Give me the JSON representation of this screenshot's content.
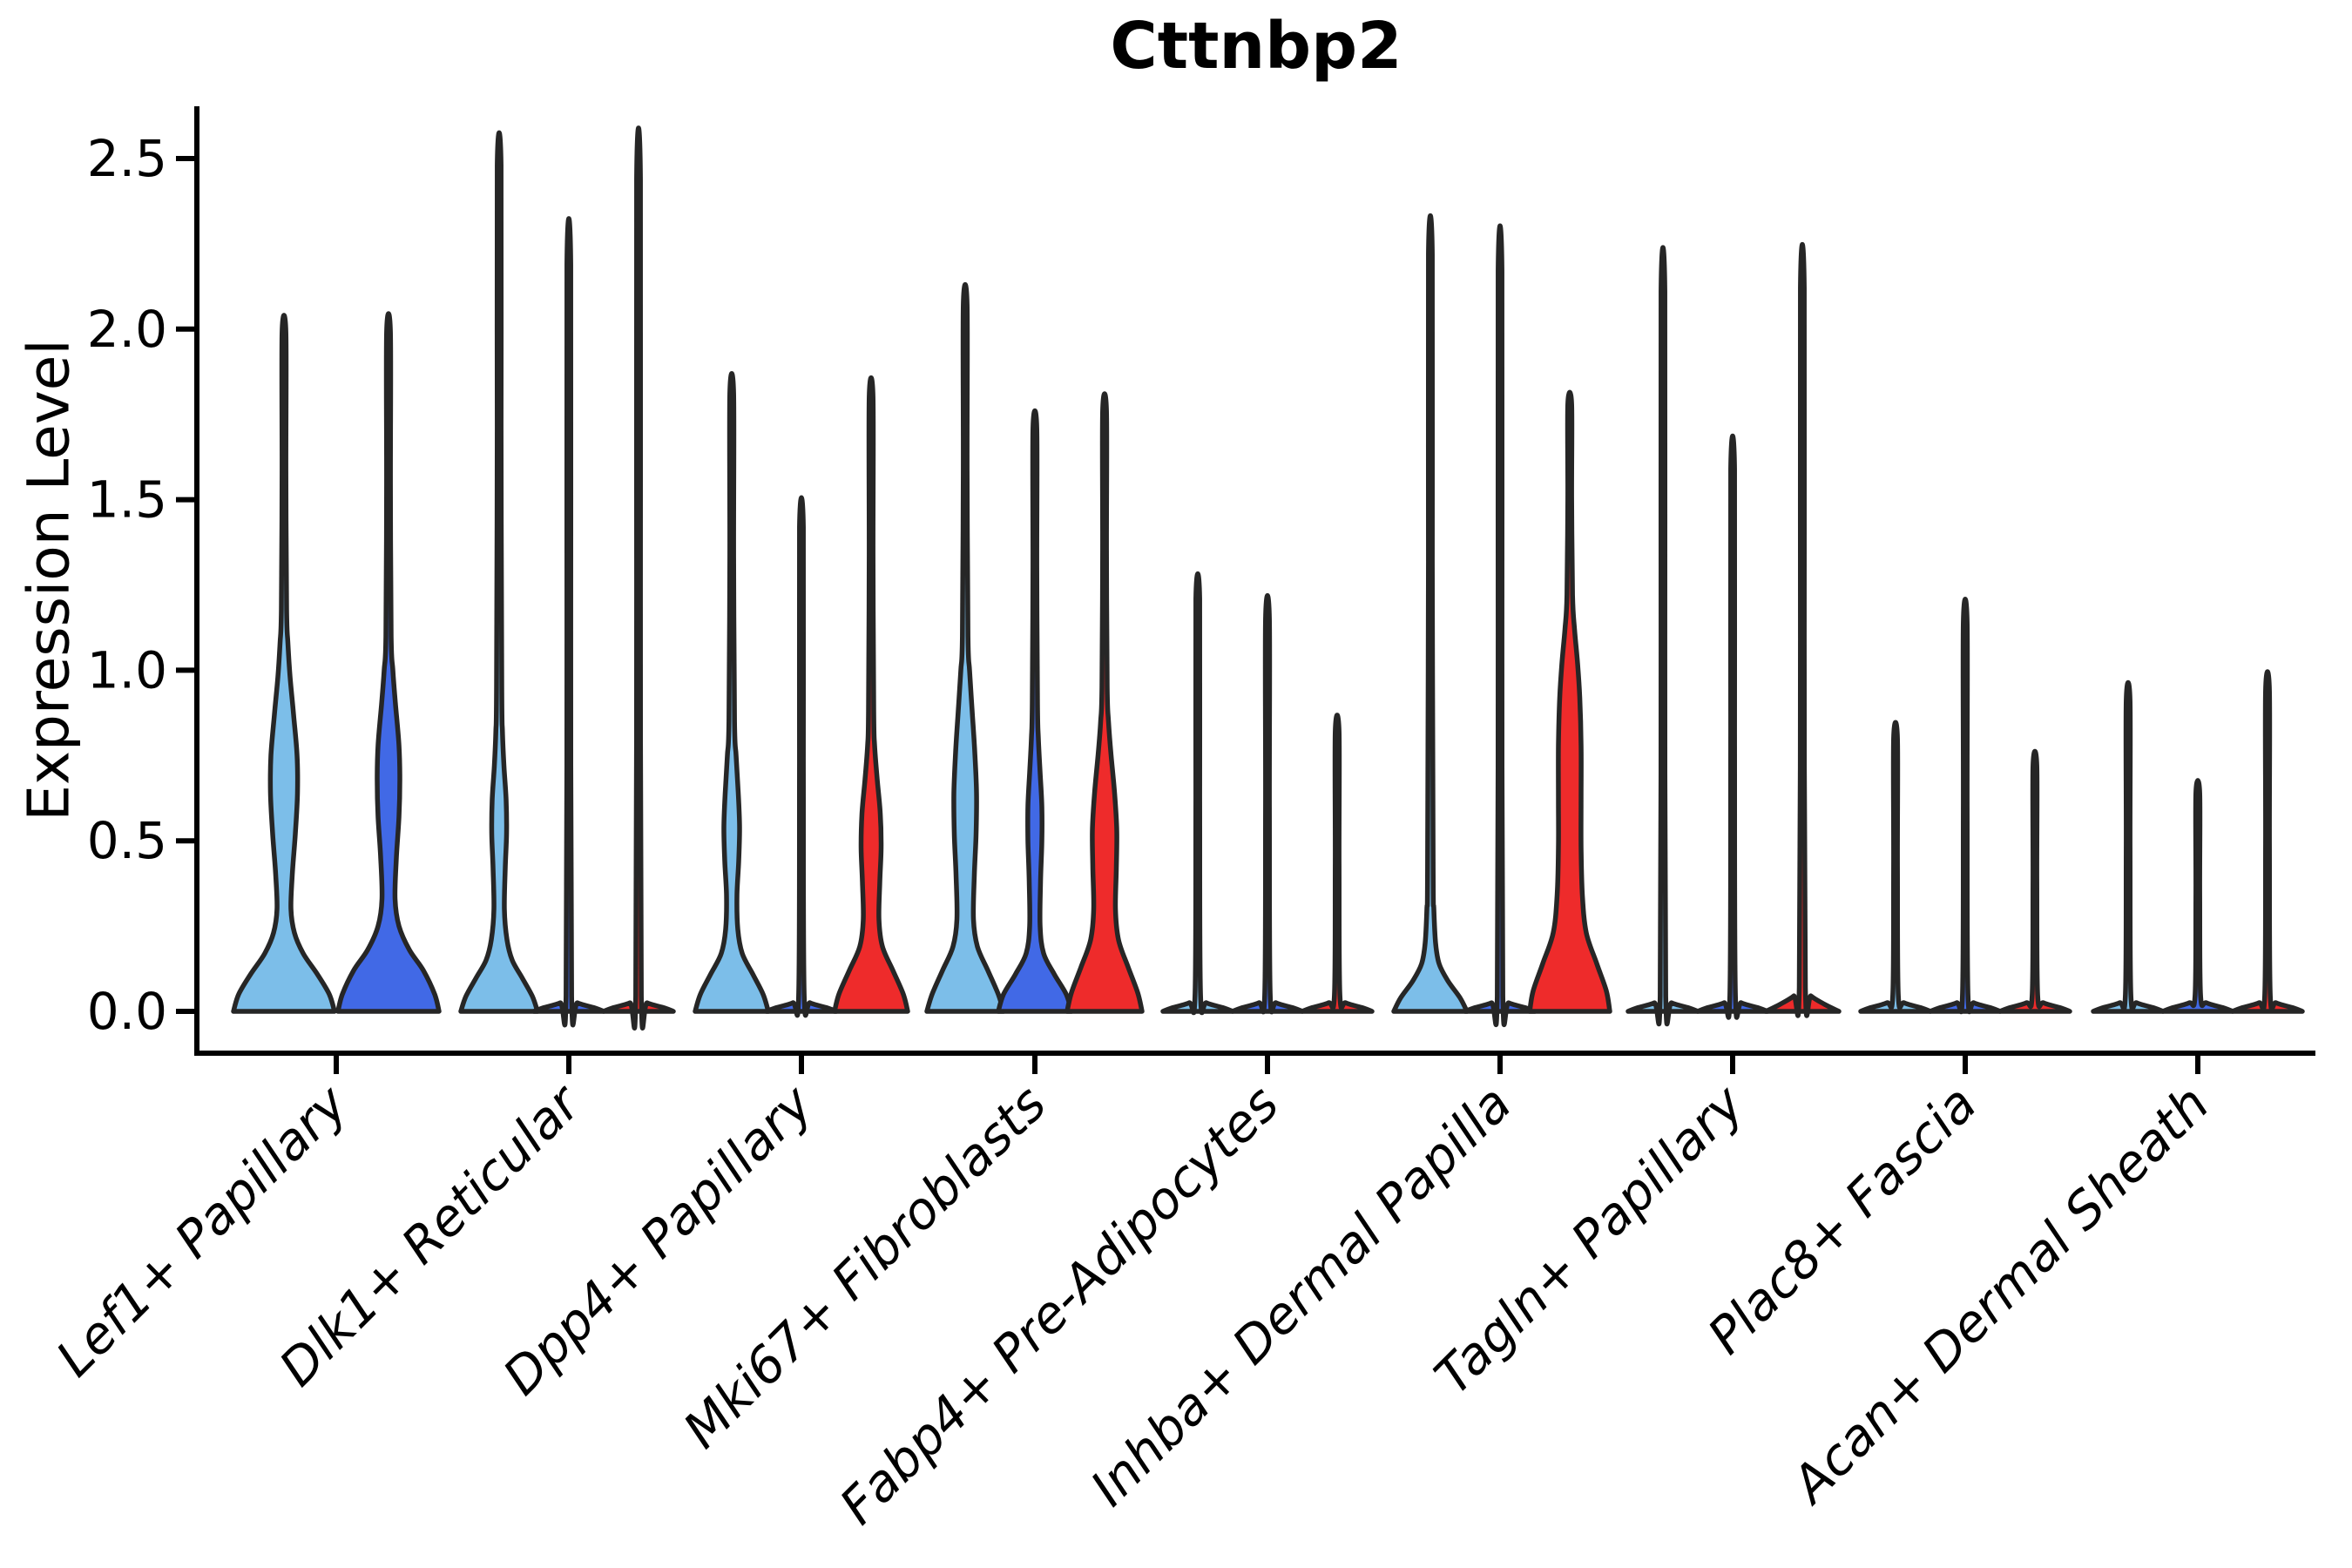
{
  "chart_data": {
    "type": "violin",
    "title": "Cttnbp2",
    "ylabel": "Expression Level",
    "ytick_labels": [
      "0.0",
      "0.5",
      "1.0",
      "1.5",
      "2.0",
      "2.5"
    ],
    "ytick_values": [
      0.0,
      0.5,
      1.0,
      1.5,
      2.0,
      2.5
    ],
    "ylim": [
      -0.12,
      2.66
    ],
    "x_tick_rotation_deg": 45,
    "grid": false,
    "legend": "none",
    "categories": [
      "Lef1+ Papillary",
      "Dlk1+ Reticular",
      "Dpp4+ Papillary",
      "Mki67+ Fibroblasts",
      "Fabp4+ Pre-Adipocytes",
      "Inhba+ Dermal Papilla",
      "Tagln+ Papillary",
      "Plac8+ Fascia",
      "Acan+ Dermal Sheath"
    ],
    "palette": {
      "light_blue": "#7CBEE9",
      "dark_blue": "#4169E6",
      "red": "#EE2B2B",
      "outline": "#262626",
      "axis": "#000000"
    },
    "series_max_expression": [
      {
        "name": "light_blue",
        "values": [
          1.99,
          2.48,
          1.81,
          2.07,
          1.21,
          2.22,
          2.11,
          0.8,
          0.91
        ]
      },
      {
        "name": "dark_blue",
        "values": [
          1.99,
          2.19,
          1.42,
          1.71,
          1.15,
          2.17,
          1.59,
          1.14,
          0.64
        ]
      },
      {
        "name": "red",
        "values": [
          null,
          2.44,
          1.8,
          1.76,
          0.82,
          1.78,
          2.12,
          0.72,
          0.94
        ]
      }
    ],
    "groups": [
      {
        "category": "Lef1+ Papillary",
        "violins": [
          {
            "color": "light_blue",
            "max": 1.99,
            "profile": [
              [
                0,
                58
              ],
              [
                0.05,
                52
              ],
              [
                0.11,
                38
              ],
              [
                0.17,
                22
              ],
              [
                0.23,
                12
              ],
              [
                0.3,
                8
              ],
              [
                0.4,
                9.5
              ],
              [
                0.52,
                13
              ],
              [
                0.64,
                15.5
              ],
              [
                0.75,
                15
              ],
              [
                0.87,
                11
              ],
              [
                0.98,
                7
              ],
              [
                1.08,
                4.5
              ],
              [
                1.18,
                3
              ]
            ]
          },
          {
            "color": "dark_blue",
            "max": 1.99,
            "profile": [
              [
                0,
                58
              ],
              [
                0.05,
                53
              ],
              [
                0.12,
                40
              ],
              [
                0.18,
                24
              ],
              [
                0.25,
                12
              ],
              [
                0.33,
                7.5
              ],
              [
                0.45,
                9
              ],
              [
                0.57,
                12
              ],
              [
                0.68,
                13
              ],
              [
                0.78,
                12
              ],
              [
                0.9,
                8
              ],
              [
                1.0,
                5
              ],
              [
                1.1,
                3
              ]
            ]
          }
        ]
      },
      {
        "category": "Dlk1+ Reticular",
        "violins": [
          {
            "color": "light_blue",
            "max": 2.48,
            "profile": [
              [
                0,
                44
              ],
              [
                0.045,
                38
              ],
              [
                0.1,
                26
              ],
              [
                0.15,
                15
              ],
              [
                0.21,
                9
              ],
              [
                0.3,
                6
              ],
              [
                0.42,
                7
              ],
              [
                0.52,
                8.5
              ],
              [
                0.62,
                8
              ],
              [
                0.72,
                5.5
              ],
              [
                0.82,
                3.8
              ],
              [
                0.95,
                3
              ]
            ]
          },
          {
            "color": "dark_blue",
            "max": 2.19,
            "profile": [
              [
                0,
                40
              ],
              [
                0.01,
                30
              ],
              [
                0.025,
                10
              ],
              [
                0.045,
                3.2
              ]
            ]
          },
          {
            "color": "red",
            "max": 2.44,
            "profile": [
              [
                0,
                40
              ],
              [
                0.01,
                30
              ],
              [
                0.025,
                10
              ],
              [
                0.045,
                3.2
              ]
            ]
          }
        ]
      },
      {
        "category": "Dpp4+ Papillary",
        "violins": [
          {
            "color": "light_blue",
            "max": 1.81,
            "profile": [
              [
                0,
                42
              ],
              [
                0.05,
                36
              ],
              [
                0.11,
                24
              ],
              [
                0.17,
                12
              ],
              [
                0.24,
                7
              ],
              [
                0.34,
                6
              ],
              [
                0.44,
                8
              ],
              [
                0.54,
                9
              ],
              [
                0.64,
                7.5
              ],
              [
                0.75,
                5
              ],
              [
                0.85,
                3.2
              ]
            ]
          },
          {
            "color": "dark_blue",
            "max": 1.42,
            "profile": [
              [
                0,
                40
              ],
              [
                0.01,
                30
              ],
              [
                0.025,
                10
              ],
              [
                0.045,
                3.2
              ]
            ]
          },
          {
            "color": "red",
            "max": 1.8,
            "profile": [
              [
                0,
                42
              ],
              [
                0.05,
                37
              ],
              [
                0.12,
                25
              ],
              [
                0.19,
                13
              ],
              [
                0.27,
                9
              ],
              [
                0.38,
                10
              ],
              [
                0.48,
                11.5
              ],
              [
                0.58,
                10.5
              ],
              [
                0.68,
                7
              ],
              [
                0.78,
                4
              ],
              [
                0.88,
                3
              ]
            ]
          }
        ]
      },
      {
        "category": "Mki67+ Fibroblasts",
        "violins": [
          {
            "color": "light_blue",
            "max": 2.07,
            "profile": [
              [
                0,
                44
              ],
              [
                0.05,
                38
              ],
              [
                0.12,
                26
              ],
              [
                0.19,
                14
              ],
              [
                0.27,
                9.5
              ],
              [
                0.4,
                10.5
              ],
              [
                0.52,
                12.5
              ],
              [
                0.64,
                13
              ],
              [
                0.76,
                11
              ],
              [
                0.88,
                8
              ],
              [
                1.0,
                5
              ],
              [
                1.1,
                3.2
              ]
            ]
          },
          {
            "color": "dark_blue",
            "max": 1.71,
            "profile": [
              [
                0,
                42
              ],
              [
                0.05,
                36
              ],
              [
                0.11,
                22
              ],
              [
                0.17,
                10
              ],
              [
                0.25,
                6
              ],
              [
                0.38,
                6.5
              ],
              [
                0.5,
                8
              ],
              [
                0.6,
                8
              ],
              [
                0.7,
                6
              ],
              [
                0.8,
                4
              ],
              [
                0.9,
                3
              ]
            ]
          },
          {
            "color": "red",
            "max": 1.76,
            "profile": [
              [
                0,
                43
              ],
              [
                0.055,
                38
              ],
              [
                0.13,
                27
              ],
              [
                0.21,
                16
              ],
              [
                0.3,
                12.5
              ],
              [
                0.42,
                13.5
              ],
              [
                0.53,
                14
              ],
              [
                0.64,
                11.5
              ],
              [
                0.75,
                7.5
              ],
              [
                0.85,
                4.5
              ],
              [
                0.95,
                3
              ]
            ]
          }
        ]
      },
      {
        "category": "Fabp4+ Pre-Adipocytes",
        "violins": [
          {
            "color": "light_blue",
            "max": 1.21,
            "profile": [
              [
                0,
                40
              ],
              [
                0.01,
                30
              ],
              [
                0.025,
                10
              ],
              [
                0.045,
                3.2
              ]
            ]
          },
          {
            "color": "dark_blue",
            "max": 1.15,
            "profile": [
              [
                0,
                40
              ],
              [
                0.01,
                30
              ],
              [
                0.025,
                10
              ],
              [
                0.045,
                3.2
              ]
            ]
          },
          {
            "color": "red",
            "max": 0.82,
            "profile": [
              [
                0,
                40
              ],
              [
                0.01,
                30
              ],
              [
                0.025,
                10
              ],
              [
                0.045,
                3.2
              ]
            ]
          }
        ]
      },
      {
        "category": "Inhba+ Dermal Papilla",
        "violins": [
          {
            "color": "light_blue",
            "max": 2.22,
            "profile": [
              [
                0,
                42
              ],
              [
                0.04,
                34
              ],
              [
                0.09,
                20
              ],
              [
                0.14,
                10
              ],
              [
                0.2,
                6
              ],
              [
                0.3,
                4
              ],
              [
                0.42,
                3.2
              ]
            ]
          },
          {
            "color": "dark_blue",
            "max": 2.17,
            "profile": [
              [
                0,
                40
              ],
              [
                0.01,
                30
              ],
              [
                0.025,
                10
              ],
              [
                0.045,
                3.2
              ]
            ]
          },
          {
            "color": "red",
            "max": 1.78,
            "profile": [
              [
                0,
                46
              ],
              [
                0.06,
                42
              ],
              [
                0.14,
                31
              ],
              [
                0.23,
                19
              ],
              [
                0.34,
                14.5
              ],
              [
                0.48,
                13
              ],
              [
                0.62,
                13
              ],
              [
                0.78,
                13
              ],
              [
                0.92,
                11.5
              ],
              [
                1.02,
                9
              ],
              [
                1.12,
                5.5
              ],
              [
                1.22,
                3.2
              ]
            ]
          }
        ]
      },
      {
        "category": "Tagln+ Papillary",
        "violins": [
          {
            "color": "light_blue",
            "max": 2.11,
            "profile": [
              [
                0,
                40
              ],
              [
                0.01,
                30
              ],
              [
                0.025,
                10
              ],
              [
                0.045,
                3.2
              ]
            ]
          },
          {
            "color": "dark_blue",
            "max": 1.59,
            "profile": [
              [
                0,
                40
              ],
              [
                0.01,
                30
              ],
              [
                0.025,
                10
              ],
              [
                0.045,
                3.2
              ]
            ]
          },
          {
            "color": "red",
            "max": 2.12,
            "profile": [
              [
                0,
                42
              ],
              [
                0.02,
                26
              ],
              [
                0.045,
                10
              ],
              [
                0.07,
                3.5
              ]
            ]
          }
        ]
      },
      {
        "category": "Plac8+ Fascia",
        "violins": [
          {
            "color": "light_blue",
            "max": 0.8,
            "profile": [
              [
                0,
                40
              ],
              [
                0.01,
                30
              ],
              [
                0.025,
                10
              ],
              [
                0.045,
                3.2
              ]
            ]
          },
          {
            "color": "dark_blue",
            "max": 1.14,
            "profile": [
              [
                0,
                40
              ],
              [
                0.01,
                30
              ],
              [
                0.025,
                10
              ],
              [
                0.045,
                3.2
              ]
            ]
          },
          {
            "color": "red",
            "max": 0.72,
            "profile": [
              [
                0,
                40
              ],
              [
                0.01,
                30
              ],
              [
                0.025,
                10
              ],
              [
                0.045,
                3.2
              ]
            ]
          }
        ]
      },
      {
        "category": "Acan+ Dermal Sheath",
        "violins": [
          {
            "color": "light_blue",
            "max": 0.91,
            "profile": [
              [
                0,
                40
              ],
              [
                0.01,
                30
              ],
              [
                0.025,
                10
              ],
              [
                0.045,
                3.2
              ]
            ]
          },
          {
            "color": "dark_blue",
            "max": 0.64,
            "profile": [
              [
                0,
                40
              ],
              [
                0.01,
                30
              ],
              [
                0.025,
                10
              ],
              [
                0.045,
                3.2
              ]
            ]
          },
          {
            "color": "red",
            "max": 0.94,
            "profile": [
              [
                0,
                40
              ],
              [
                0.01,
                30
              ],
              [
                0.025,
                10
              ],
              [
                0.045,
                3.2
              ]
            ]
          }
        ]
      }
    ]
  }
}
